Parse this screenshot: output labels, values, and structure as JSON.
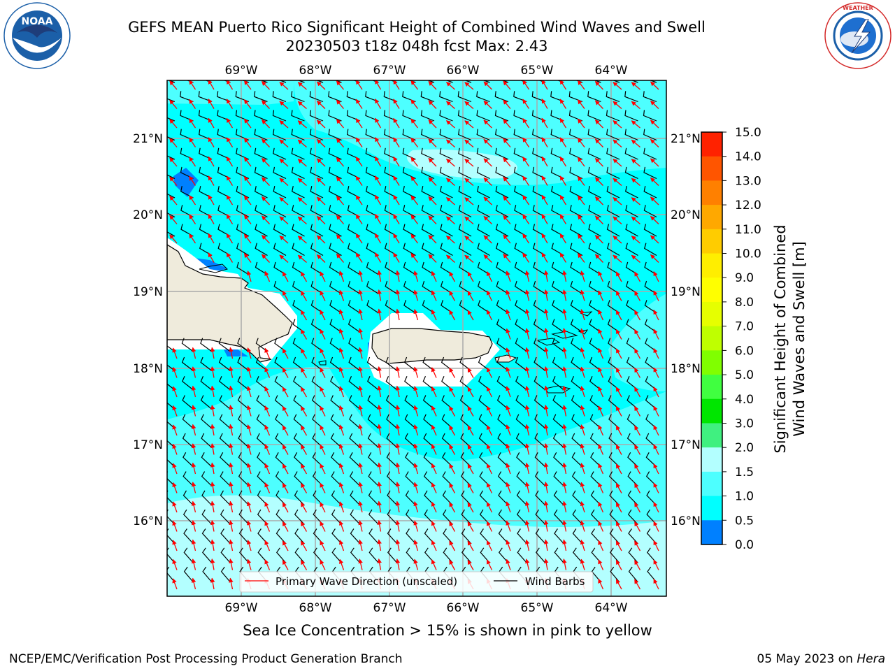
{
  "header": {
    "title_line1": "GEFS MEAN Puerto Rico Significant Height of Combined Wind Waves and Swell",
    "title_line2": "20230503 t18z 048h fcst   Max: 2.43"
  },
  "logos": {
    "left": {
      "name": "NOAA",
      "ring_text": "NATIONAL OCEANIC AND ATMOSPHERIC ADMINISTRATION",
      "bottom_text": "U.S. DEPARTMENT OF COMMERCE",
      "color": "#1b5fa8"
    },
    "right": {
      "name": "National Weather Service",
      "ring_text": "NATIONAL WEATHER SERVICE",
      "color": "#d42a2a"
    }
  },
  "map": {
    "lon_labels": [
      "69°W",
      "68°W",
      "67°W",
      "66°W",
      "65°W",
      "64°W"
    ],
    "lat_labels": [
      "21°N",
      "20°N",
      "19°N",
      "18°N",
      "17°N",
      "16°N"
    ],
    "legend": {
      "primary_wave_label": "Primary Wave Direction (unscaled)",
      "wind_barb_label": "Wind Barbs",
      "primary_wave_color": "#ff0000",
      "wind_barb_color": "#000000"
    },
    "land_color": "#efebdc",
    "ocean_colors": {
      "band_1_0_1_5": "#00ffff",
      "band_1_5_2_0": "#4dffff",
      "band_2_0_3_0": "#b3ffff",
      "band_0_5_1_0": "#0080ff"
    }
  },
  "colorbar": {
    "label_line1": "Significant Height of Combined",
    "label_line2": "Wind Waves and Swell [m]",
    "ticks": [
      "15.0",
      "14.0",
      "13.0",
      "12.0",
      "11.0",
      "10.0",
      "9.0",
      "8.0",
      "7.0",
      "6.0",
      "5.0",
      "4.0",
      "3.0",
      "2.0",
      "1.5",
      "1.0",
      "0.5",
      "0.0"
    ],
    "colors_top_to_bottom": [
      "#ff0000",
      "#ff2200",
      "#ff5500",
      "#ff8000",
      "#ffa800",
      "#ffcc00",
      "#ffee00",
      "#ffff00",
      "#e6ff00",
      "#bfff00",
      "#80ff00",
      "#40ff40",
      "#00e600",
      "#40f080",
      "#b3ffff",
      "#4dffff",
      "#00ffff",
      "#0080ff",
      "#0000ff"
    ]
  },
  "footer": {
    "caption": "Sea Ice Concentration > 15% is shown in pink to yellow",
    "left": "NCEP/EMC/Verification Post Processing Product Generation Branch",
    "right_date": "05 May 2023 on ",
    "right_host": "Hera"
  }
}
